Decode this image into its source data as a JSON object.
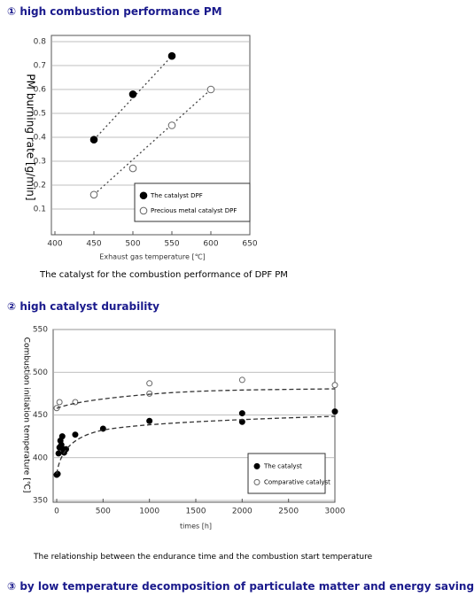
{
  "headings": [
    "① high combustion performance PM",
    "② high catalyst durability",
    "③ by low temperature decomposition of particulate matter and energy saving"
  ],
  "captions": [
    "The catalyst for the combustion performance of DPF PM",
    "The relationship between the endurance time and the combustion start temperature"
  ],
  "chart_data": [
    {
      "type": "scatter",
      "ylabel": "PM burning rate [g/min]",
      "xlabel": "Exhaust gas temperature [℃]",
      "xlim": [
        400,
        650
      ],
      "ylim": [
        0,
        0.8
      ],
      "xticks": [
        400,
        450,
        500,
        550,
        600,
        650
      ],
      "yticks": [
        0.1,
        0.2,
        0.3,
        0.4,
        0.5,
        0.6,
        0.7,
        0.8
      ],
      "grid": true,
      "legend": "lower right",
      "trendline": "dotted",
      "series": [
        {
          "name": "The catalyst DPF",
          "color": "#000000",
          "marker": "filled",
          "x": [
            450,
            500,
            550
          ],
          "values": [
            0.39,
            0.58,
            0.74
          ]
        },
        {
          "name": "Precious metal catalyst DPF",
          "color": "#000000",
          "marker": "open",
          "x": [
            450,
            500,
            550,
            600
          ],
          "values": [
            0.16,
            0.27,
            0.45,
            0.6
          ]
        }
      ]
    },
    {
      "type": "scatter",
      "ylabel": "Combustion initiation temperature [℃]",
      "xlabel": "times [h]",
      "xlim": [
        0,
        3000
      ],
      "ylim": [
        350,
        550
      ],
      "xticks": [
        0,
        500,
        1000,
        1500,
        2000,
        2500,
        3000
      ],
      "yticks": [
        350,
        400,
        450,
        500,
        550
      ],
      "grid": true,
      "legend": "lower right",
      "trendline": "dashed",
      "series": [
        {
          "name": "The catalyst",
          "color": "#000000",
          "marker": "filled",
          "x": [
            0,
            10,
            20,
            30,
            40,
            50,
            60,
            70,
            80,
            100,
            200,
            500,
            1000,
            2000,
            2000,
            3000
          ],
          "values": [
            380,
            381,
            405,
            412,
            420,
            415,
            425,
            410,
            406,
            410,
            427,
            434,
            443,
            452,
            442,
            454
          ]
        },
        {
          "name": "Comparative catalyst",
          "color": "#000000",
          "marker": "open",
          "x": [
            0,
            30,
            200,
            1000,
            1000,
            2000,
            3000
          ],
          "values": [
            458,
            465,
            465,
            487,
            475,
            491,
            485
          ]
        }
      ]
    }
  ]
}
